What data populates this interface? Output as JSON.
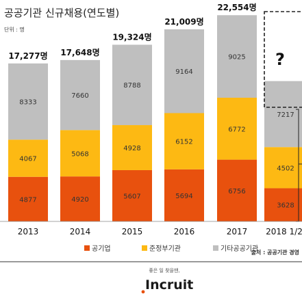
{
  "title": "공공기관 신규채용(연도별)",
  "unit_label": "단위 : 명",
  "source": "출처 : 공공기관 경영",
  "brand": {
    "tagline": "좋은 일 찾을땐,",
    "name": "Incruit"
  },
  "colors": {
    "public_corp": "#E8510E",
    "quasi_gov": "#FDB913",
    "other": "#BFBFBF",
    "mystery_bar": "#BFBFBF",
    "brand_text": "#1a1a1a",
    "brand_dot": "#E8510E"
  },
  "chart_data": {
    "type": "bar",
    "stacked": true,
    "title": "공공기관 신규채용(연도별)",
    "categories": [
      "2013",
      "2014",
      "2015",
      "2016",
      "2017",
      "2018 1/2"
    ],
    "series": [
      {
        "name": "공기업",
        "values": [
          4877,
          4920,
          5607,
          5694,
          6756,
          3628
        ]
      },
      {
        "name": "준정부기관",
        "values": [
          4067,
          5068,
          4928,
          6152,
          6772,
          4502
        ]
      },
      {
        "name": "기타공공기관",
        "values": [
          8333,
          7660,
          8788,
          9164,
          9025,
          7217
        ]
      }
    ],
    "totals": [
      "17,277명",
      "17,648명",
      "19,324명",
      "21,009명",
      "22,554명",
      null
    ],
    "segment_labels": [
      [
        "4877",
        "4067",
        "8333"
      ],
      [
        "4920",
        "5068",
        "7660"
      ],
      [
        "5607",
        "4928",
        "8788"
      ],
      [
        "5694",
        "6152",
        "9164"
      ],
      [
        "6756",
        "6772",
        "9025"
      ],
      [
        "3628",
        "4502",
        "7217"
      ]
    ],
    "unknown_marker": "?",
    "legend_position": "bottom",
    "grid": false,
    "ylim": [
      0,
      24000
    ]
  }
}
